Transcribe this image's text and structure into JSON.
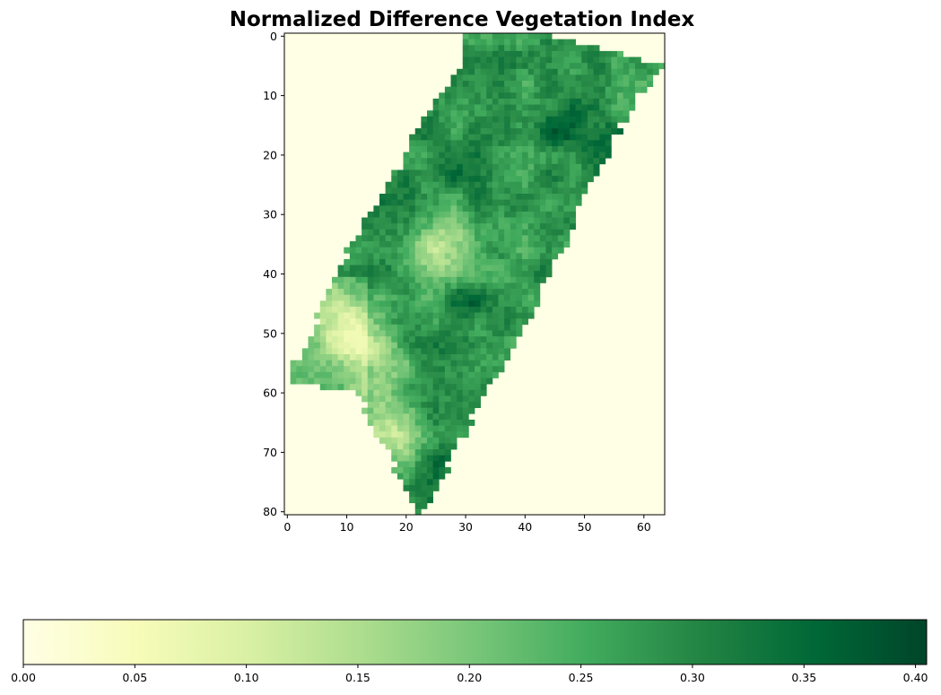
{
  "chart_data": {
    "type": "heatmap",
    "title": "Normalized Difference Vegetation Index",
    "xlabel": "",
    "ylabel": "",
    "grid": false,
    "colormap": "YlGn",
    "colormap_stops": [
      "#ffffe5",
      "#f7fcb9",
      "#d9f0a3",
      "#addd8e",
      "#78c679",
      "#41ab5d",
      "#238443",
      "#006837",
      "#004529"
    ],
    "n_rows": 81,
    "n_cols": 64,
    "x_ticks": [
      0,
      10,
      20,
      30,
      40,
      50,
      60
    ],
    "x_tick_labels": [
      "0",
      "10",
      "20",
      "30",
      "40",
      "50",
      "60"
    ],
    "y_ticks": [
      0,
      10,
      20,
      30,
      40,
      50,
      60,
      70,
      80
    ],
    "y_tick_labels": [
      "0",
      "10",
      "20",
      "30",
      "40",
      "50",
      "60",
      "70",
      "80"
    ],
    "colorbar": {
      "orientation": "horizontal",
      "placement": "bottom",
      "range": [
        0.0,
        0.405
      ],
      "ticks": [
        0.0,
        0.05,
        0.1,
        0.15,
        0.2,
        0.25,
        0.3,
        0.35,
        0.4
      ],
      "tick_labels": [
        "0.00",
        "0.05",
        "0.10",
        "0.15",
        "0.20",
        "0.25",
        "0.30",
        "0.35",
        "0.40"
      ]
    },
    "region": {
      "description_outline_rows": [
        [
          0,
          30,
          45
        ],
        [
          5,
          29,
          64
        ],
        [
          10,
          26,
          59
        ],
        [
          15,
          22,
          56
        ],
        [
          20,
          20,
          54
        ],
        [
          25,
          17,
          51
        ],
        [
          30,
          14,
          49
        ],
        [
          35,
          11,
          47
        ],
        [
          40,
          8,
          44
        ],
        [
          45,
          6,
          42
        ],
        [
          50,
          4,
          39
        ],
        [
          55,
          1,
          37
        ],
        [
          58,
          0,
          34
        ],
        [
          60,
          12,
          33
        ],
        [
          65,
          14,
          31
        ],
        [
          70,
          17,
          28
        ],
        [
          75,
          19,
          26
        ],
        [
          80,
          22,
          23
        ]
      ],
      "background_value": 0.0,
      "typical_value": 0.28,
      "low_patch_centers": [
        [
          48,
          10
        ],
        [
          55,
          15
        ],
        [
          67,
          17
        ],
        [
          35,
          26
        ]
      ],
      "high_patch_centers": [
        [
          20,
          27
        ],
        [
          16,
          46
        ],
        [
          71,
          26
        ],
        [
          18,
          53
        ],
        [
          45,
          30
        ]
      ]
    }
  }
}
